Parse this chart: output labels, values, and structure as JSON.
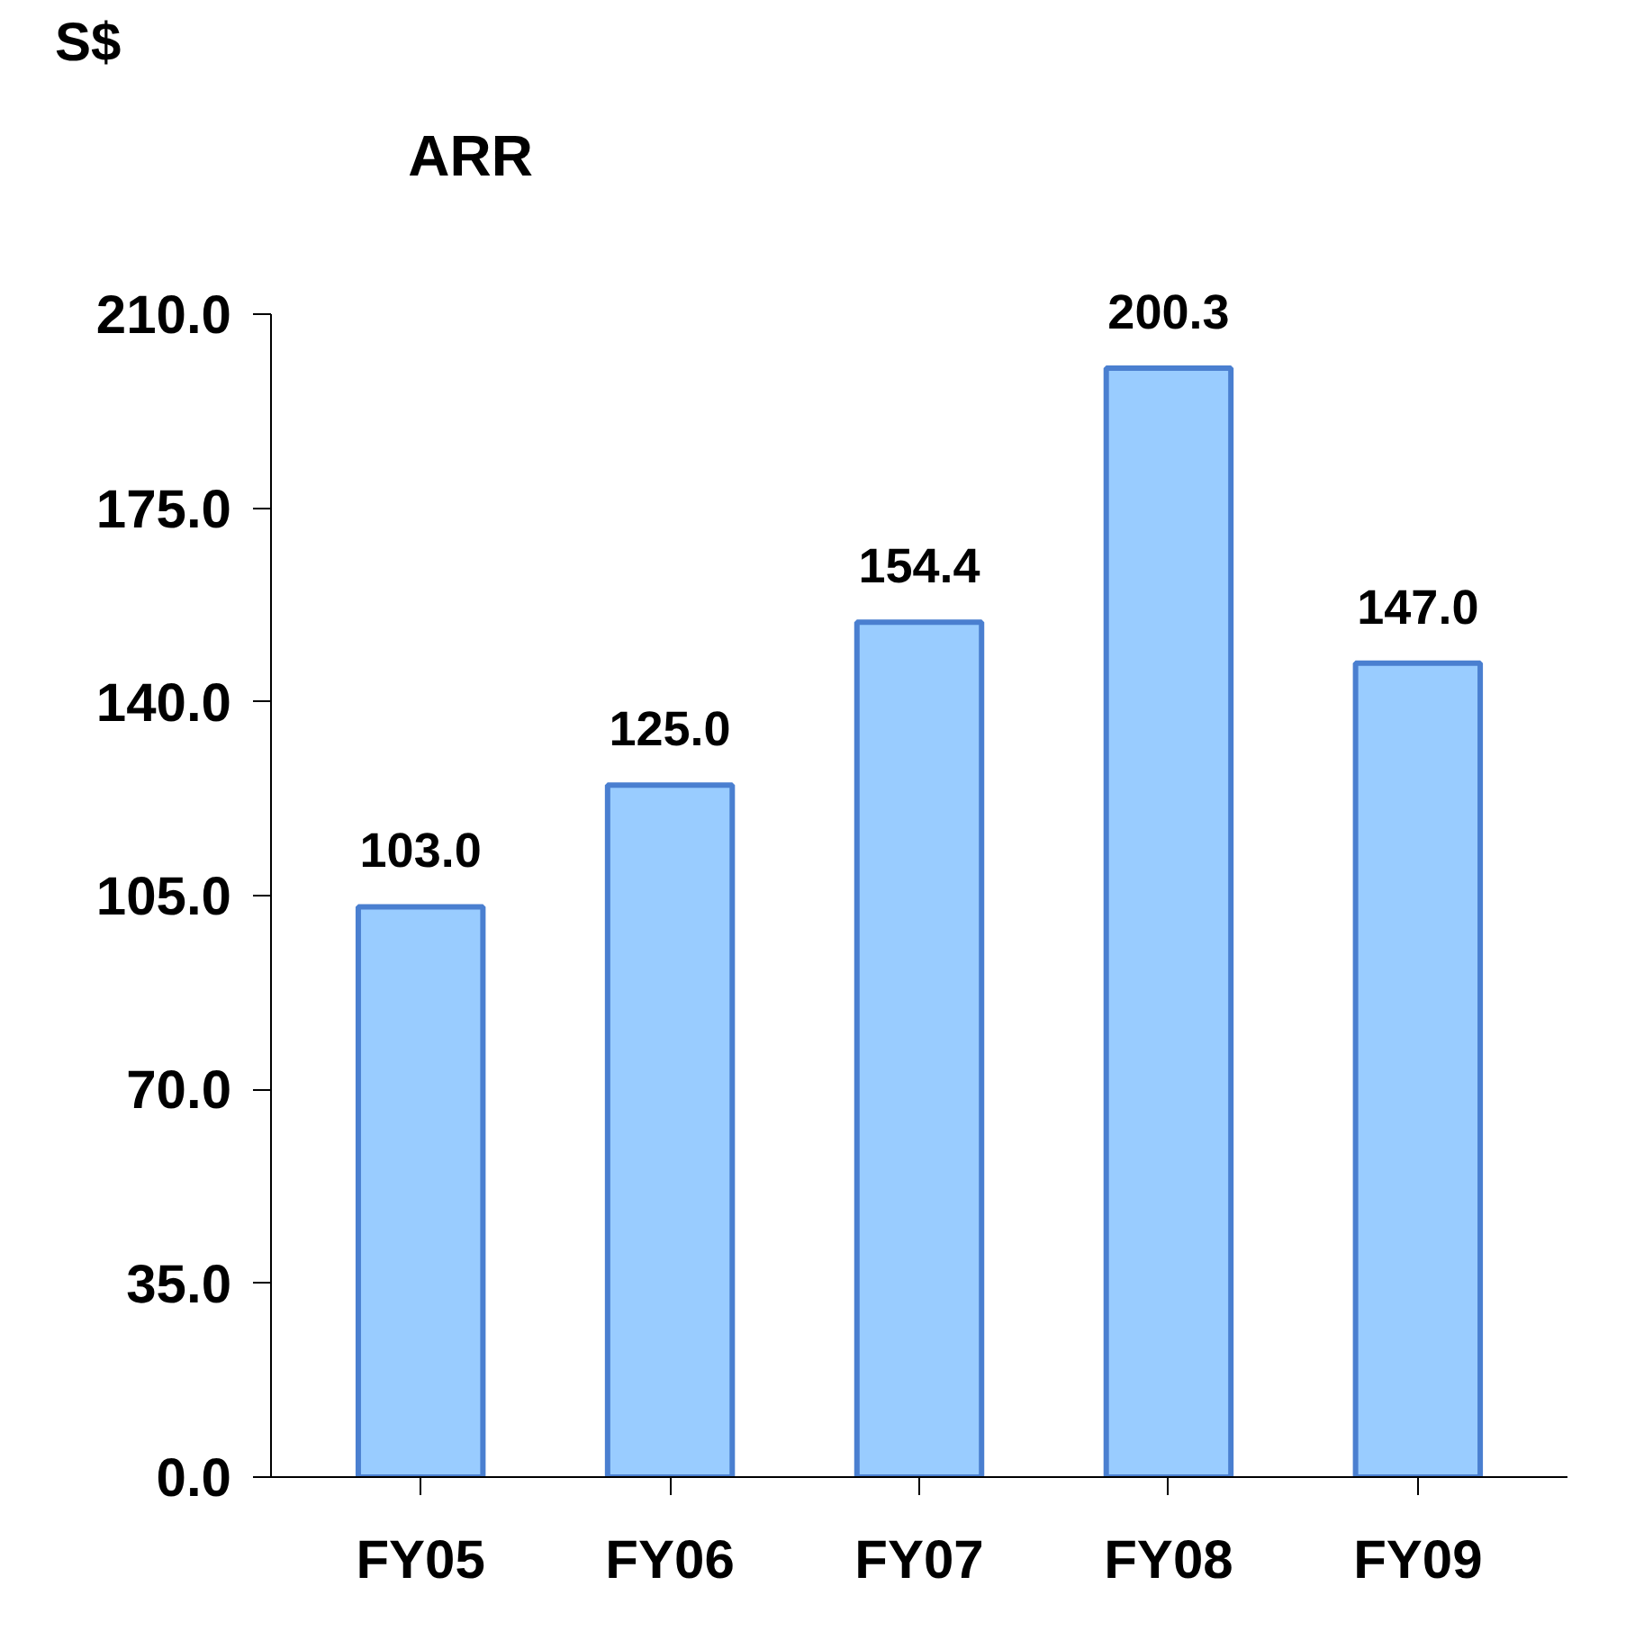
{
  "chart_data": {
    "type": "bar",
    "title": "ARR",
    "ylabel": "S$",
    "categories": [
      "FY05",
      "FY06",
      "FY07",
      "FY08",
      "FY09"
    ],
    "values": [
      103.0,
      125.0,
      154.4,
      200.3,
      147.0
    ],
    "color": "#99ccff",
    "value_labels": [
      "103.0",
      "125.0",
      "154.4",
      "200.3",
      "147.0"
    ],
    "grid": false,
    "ylim": [
      0,
      210
    ],
    "yticks": [
      {
        "value": 0,
        "label": "0.0"
      },
      {
        "value": 35,
        "label": "35.0"
      },
      {
        "value": 70,
        "label": "70.0"
      },
      {
        "value": 105,
        "label": "105.0"
      },
      {
        "value": 140,
        "label": "140.0"
      },
      {
        "value": 175,
        "label": "175.0"
      },
      {
        "value": 210,
        "label": "210.0"
      }
    ]
  }
}
